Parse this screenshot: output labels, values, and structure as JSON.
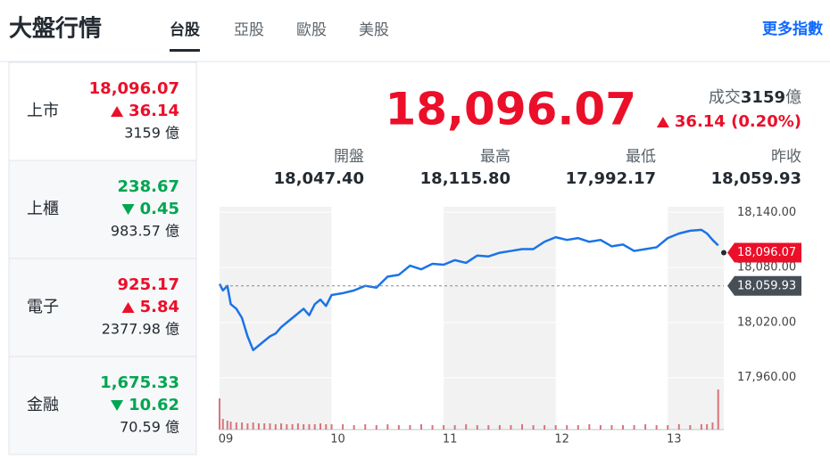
{
  "header": {
    "title": "大盤行情",
    "tabs": [
      "台股",
      "亞股",
      "歐股",
      "美股"
    ],
    "more": "更多指數"
  },
  "colors": {
    "up": "#eb0f29",
    "down": "#00a651"
  },
  "indices": [
    {
      "name": "上市",
      "value": "18,096.07",
      "change": "36.14",
      "volume": "3159 億",
      "direction": "up"
    },
    {
      "name": "上櫃",
      "value": "238.67",
      "change": "0.45",
      "volume": "983.57 億",
      "direction": "down"
    },
    {
      "name": "電子",
      "value": "925.17",
      "change": "5.84",
      "volume": "2377.98 億",
      "direction": "up"
    },
    {
      "name": "金融",
      "value": "1,675.33",
      "change": "10.62",
      "volume": "70.59 億",
      "direction": "down"
    }
  ],
  "summary": {
    "value": "18,096.07",
    "volume_label": "成交",
    "volume": "3159",
    "volume_unit": "億",
    "change": "36.14 (0.20%)",
    "direction": "up",
    "stats": [
      {
        "label": "開盤",
        "value": "18,047.40"
      },
      {
        "label": "最高",
        "value": "18,115.80"
      },
      {
        "label": "最低",
        "value": "17,992.17"
      },
      {
        "label": "昨收",
        "value": "18,059.93"
      }
    ]
  },
  "chart": {
    "type": "line",
    "color": "#1a73e8",
    "x": [
      9.0,
      9.03,
      9.07,
      9.1,
      9.15,
      9.2,
      9.25,
      9.3,
      9.35,
      9.4,
      9.45,
      9.5,
      9.55,
      9.6,
      9.65,
      9.7,
      9.75,
      9.8,
      9.85,
      9.9,
      9.95,
      10.0,
      10.1,
      10.2,
      10.3,
      10.4,
      10.5,
      10.6,
      10.7,
      10.8,
      10.9,
      11.0,
      11.1,
      11.2,
      11.3,
      11.4,
      11.5,
      11.6,
      11.7,
      11.8,
      11.9,
      12.0,
      12.1,
      12.2,
      12.3,
      12.4,
      12.5,
      12.6,
      12.7,
      12.8,
      12.9,
      13.0,
      13.1,
      13.2,
      13.3,
      13.35,
      13.4,
      13.45
    ],
    "values": [
      18062,
      18055,
      18060,
      18040,
      18035,
      18025,
      18005,
      17990,
      17995,
      18000,
      18005,
      18008,
      18015,
      18020,
      18025,
      18030,
      18035,
      18028,
      18040,
      18045,
      18038,
      18050,
      18052,
      18055,
      18060,
      18058,
      18070,
      18072,
      18082,
      18078,
      18084,
      18083,
      18088,
      18085,
      18093,
      18092,
      18096,
      18098,
      18100,
      18100,
      18108,
      18113,
      18110,
      18112,
      18108,
      18110,
      18103,
      18105,
      18098,
      18100,
      18102,
      18112,
      18117,
      18120,
      18121,
      18117,
      18110,
      18104
    ],
    "xlim": [
      9,
      13.5
    ],
    "xticks": [
      {
        "value": 9,
        "label": "09"
      },
      {
        "value": 10,
        "label": "10"
      },
      {
        "value": 11,
        "label": "11"
      },
      {
        "value": 12,
        "label": "12"
      },
      {
        "value": 13,
        "label": "13"
      }
    ],
    "ylim": [
      17950,
      18150
    ],
    "yticks": [
      {
        "value": 18140,
        "label": "18,140.00"
      },
      {
        "value": 18080,
        "label": "18,080.00"
      },
      {
        "value": 18020,
        "label": "18,020.00"
      },
      {
        "value": 17960,
        "label": "17,960.00"
      }
    ],
    "markers": [
      {
        "value": 18096.07,
        "label": "18,096.07",
        "color": "#eb0f29"
      },
      {
        "value": 18059.93,
        "label": "18,059.93",
        "color": "#464e56"
      }
    ],
    "volume": [
      35,
      12,
      10,
      9,
      8,
      8,
      7,
      8,
      7,
      7,
      7,
      6,
      7,
      6,
      6,
      7,
      6,
      6,
      6,
      7,
      6,
      6,
      6,
      5,
      6,
      5,
      6,
      5,
      5,
      6,
      5,
      5,
      5,
      6,
      5,
      5,
      5,
      5,
      6,
      5,
      5,
      5,
      5,
      5,
      6,
      5,
      5,
      5,
      5,
      6,
      5,
      5,
      6,
      5,
      6,
      6,
      8,
      45
    ],
    "volume_ylim": [
      0,
      45
    ],
    "volume_color": "#d9747c"
  }
}
